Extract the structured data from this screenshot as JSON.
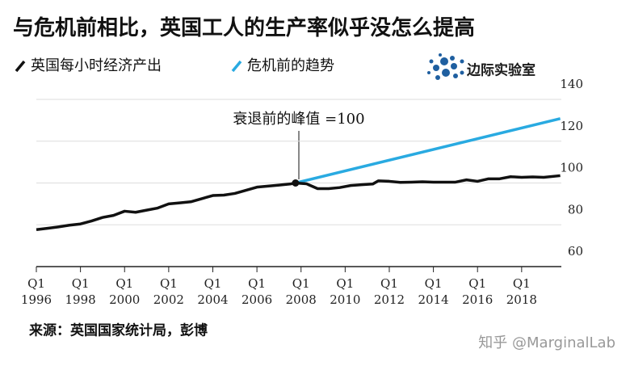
{
  "chart_data": {
    "type": "line",
    "title": "与危机前相比，英国工人的生产率似乎没怎么提高",
    "annotation": "衰退前的峰值 =100",
    "source": "来源：英国国家统计局，彭博",
    "logo": "边际实验室",
    "watermark": "知乎 @MarginalLab",
    "xlim": [
      1996,
      2019.8
    ],
    "xticks": [
      {
        "value": 1996,
        "label": "Q1 1996"
      },
      {
        "value": 1998,
        "label": "Q1 1998"
      },
      {
        "value": 2000,
        "label": "Q1 2000"
      },
      {
        "value": 2002,
        "label": "Q1 2002"
      },
      {
        "value": 2004,
        "label": "Q1 2004"
      },
      {
        "value": 2006,
        "label": "Q1 2006"
      },
      {
        "value": 2008,
        "label": "Q1 2008"
      },
      {
        "value": 2010,
        "label": "Q1 2010"
      },
      {
        "value": 2012,
        "label": "Q1 2012"
      },
      {
        "value": 2014,
        "label": "Q1 2014"
      },
      {
        "value": 2016,
        "label": "Q1 2016"
      },
      {
        "value": 2018,
        "label": "Q1 2018"
      }
    ],
    "ylim": [
      60,
      140
    ],
    "yticks": [
      60,
      80,
      100,
      120,
      140
    ],
    "grid": true,
    "peak_index": 24,
    "series": [
      {
        "name": "英国每小时经济产出",
        "color": "#111111",
        "x": [
          1996,
          1996.5,
          1997,
          1997.5,
          1998,
          1998.5,
          1999,
          1999.5,
          2000,
          2000.5,
          2001,
          2001.5,
          2002,
          2002.5,
          2003,
          2003.5,
          2004,
          2004.5,
          2005,
          2005.5,
          2006,
          2006.5,
          2007,
          2007.5,
          2007.75,
          2008.25,
          2008.75,
          2009.25,
          2009.75,
          2010.25,
          2010.75,
          2011.25,
          2011.5,
          2012,
          2012.5,
          2013,
          2013.5,
          2014,
          2014.5,
          2015,
          2015.5,
          2016,
          2016.5,
          2017,
          2017.5,
          2018,
          2018.5,
          2019,
          2019.75
        ],
        "values": [
          77.7,
          78.3,
          79,
          79.8,
          80.4,
          81.8,
          83.5,
          84.5,
          86.5,
          86,
          87,
          88,
          90,
          90.5,
          91,
          92.5,
          94,
          94.2,
          95,
          96.5,
          98,
          98.5,
          99,
          99.5,
          100,
          99.6,
          97.3,
          97.3,
          97.8,
          98.8,
          99.2,
          99.5,
          101,
          100.8,
          100.3,
          100.4,
          100.6,
          100.4,
          100.4,
          100.4,
          101.5,
          100.8,
          102,
          102,
          103,
          102.7,
          102.9,
          102.7,
          103.5
        ]
      },
      {
        "name": "危机前的趋势",
        "color": "#29aae1",
        "x": [
          2007.75,
          2019.75
        ],
        "values": [
          100,
          130.8
        ]
      }
    ]
  }
}
